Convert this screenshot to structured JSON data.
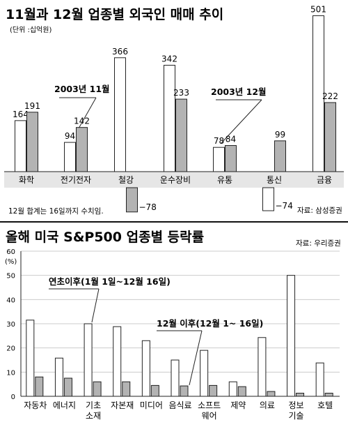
{
  "chart_data": [
    {
      "type": "bar",
      "title": "11월과 12월 업종별 외국인 매매 추이",
      "unit": "(단위 :십억원)",
      "categories": [
        "화학",
        "전기전자",
        "철강",
        "운수장비",
        "유통",
        "통신",
        "금융"
      ],
      "series": [
        {
          "name": "2003년 11월",
          "values": [
            164,
            94,
            366,
            342,
            78,
            -74,
            501
          ],
          "labels": [
            "164",
            "94",
            "366",
            "342",
            "78",
            "−74",
            "501"
          ]
        },
        {
          "name": "2003년 12월",
          "values": [
            191,
            142,
            -78,
            233,
            84,
            99,
            222
          ],
          "labels": [
            "191",
            "142",
            "−78",
            "233",
            "84",
            "99",
            "222"
          ]
        }
      ],
      "annotations": [
        "2003년 11월",
        "2003년 12월"
      ],
      "footnote": "12월 합계는 16일까지 수치임.",
      "source": "자료: 삼성증권",
      "colors": {
        "nov": "#ffffff",
        "dec": "#b3b3b3",
        "outline": "#222222"
      }
    },
    {
      "type": "bar",
      "title": "올해 미국 S&P500 업종별 등락률",
      "source": "자료: 우리증권",
      "ylabel": "(%)",
      "ylim": [
        0,
        60
      ],
      "yticks": [
        "0",
        "10",
        "20",
        "30",
        "40",
        "50",
        "60"
      ],
      "grid": true,
      "categories": [
        [
          "자동차"
        ],
        [
          "에너지"
        ],
        [
          "기초",
          "소재"
        ],
        [
          "자본재"
        ],
        [
          "미디어"
        ],
        [
          "음식료"
        ],
        [
          "소프트",
          "웨어"
        ],
        [
          "제약"
        ],
        [
          "의료"
        ],
        [
          "정보",
          "기술"
        ],
        [
          "호텔"
        ]
      ],
      "series": [
        {
          "name": "연초이후(1월 1일~12월 16일)",
          "values": [
            31.5,
            15.8,
            30,
            28.8,
            23,
            15,
            19,
            6,
            24.3,
            50,
            13.8
          ]
        },
        {
          "name": "12월 이후(12월 1~ 16일)",
          "values": [
            8,
            7.5,
            6,
            6,
            4.5,
            4.3,
            4.5,
            4,
            2,
            1.3,
            1.3
          ]
        }
      ],
      "annotations": [
        "연초이후(1월 1일~12월 16일)",
        "12월 이후(12월 1~ 16일)"
      ],
      "colors": {
        "ytd": "#ffffff",
        "dec": "#b3b3b3",
        "outline": "#222222",
        "grid": "#cccccc"
      }
    }
  ]
}
